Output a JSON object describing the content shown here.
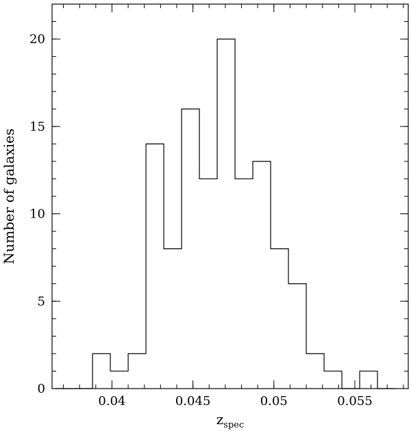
{
  "chart_data": {
    "type": "bar",
    "style": "step-histogram",
    "bin_edges": [
      0.0365,
      0.0376,
      0.0388,
      0.0399,
      0.041,
      0.0421,
      0.0432,
      0.0443,
      0.0454,
      0.0465,
      0.0476,
      0.0487,
      0.0498,
      0.0509,
      0.052,
      0.0531,
      0.0542,
      0.0553,
      0.0564,
      0.0575
    ],
    "values": [
      0,
      0,
      2,
      1,
      2,
      14,
      8,
      16,
      12,
      20,
      12,
      13,
      8,
      6,
      2,
      1,
      0,
      1,
      0
    ],
    "xlim": [
      0.0363,
      0.0583
    ],
    "ylim": [
      0,
      22
    ],
    "x_ticks": [
      {
        "value": 0.04,
        "label": "0.04"
      },
      {
        "value": 0.045,
        "label": "0.045"
      },
      {
        "value": 0.05,
        "label": "0.05"
      },
      {
        "value": 0.055,
        "label": "0.055"
      }
    ],
    "x_minor_step": 0.001,
    "y_ticks": [
      {
        "value": 0,
        "label": "0"
      },
      {
        "value": 5,
        "label": "5"
      },
      {
        "value": 10,
        "label": "10"
      },
      {
        "value": 15,
        "label": "15"
      },
      {
        "value": 20,
        "label": "20"
      }
    ],
    "y_minor_step": 1,
    "xlabel": "z",
    "xlabel_subscript": "spec",
    "ylabel": "Number of galaxies",
    "grid": false,
    "line_color": "#000000"
  }
}
